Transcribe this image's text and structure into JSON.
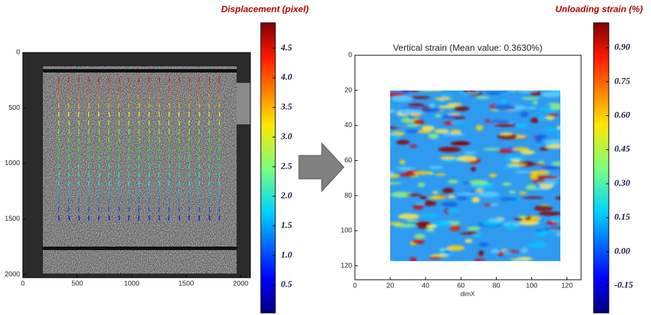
{
  "chart_data": [
    {
      "type": "image",
      "xlim": [
        0,
        2090
      ],
      "ylim": [
        0,
        2030
      ],
      "xticks": [
        0,
        500,
        1000,
        1500,
        2000
      ],
      "yticks": [
        0,
        500,
        1000,
        1500,
        2000
      ],
      "colorbar": {
        "title": "Displacement (pixel)",
        "clim": [
          0.03,
          4.93
        ],
        "ticks": [
          0.5,
          {
            "value": 1,
            "label": "1.0"
          },
          1.5,
          {
            "value": 2,
            "label": "2.0"
          },
          2.5,
          {
            "value": 3,
            "label": "3.0"
          },
          3.5,
          {
            "value": 4,
            "label": "4.0"
          },
          4.5
        ]
      }
    },
    {
      "type": "heatmap",
      "title": "Vertical strain (Mean value: 0.3630%)",
      "xlabel": "dimX",
      "xlim": [
        0,
        128
      ],
      "ylim": [
        0,
        128
      ],
      "xticks": [
        0,
        20,
        40,
        60,
        80,
        100,
        120
      ],
      "yticks": [
        0,
        20,
        40,
        60,
        80,
        100,
        120
      ],
      "colorbar": {
        "title": "Unloading strain (%)",
        "clim": [
          -0.27,
          1.01
        ],
        "ticks": [
          -0.15,
          {
            "value": 0,
            "label": "0.00"
          },
          0.15,
          {
            "value": 0.3,
            "label": "0.30"
          },
          0.45,
          {
            "value": 0.6,
            "label": "0.60"
          },
          0.75,
          {
            "value": 0.9,
            "label": "0.90"
          }
        ]
      }
    }
  ]
}
